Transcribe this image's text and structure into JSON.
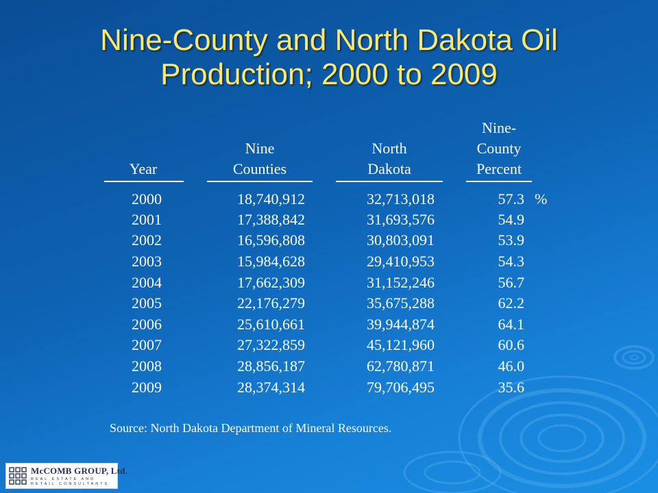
{
  "title": {
    "line1": "Nine-County and North Dakota Oil",
    "line2": "Production; 2000 to 2009"
  },
  "table": {
    "headers": {
      "year": [
        "",
        "",
        "Year"
      ],
      "nine_counties": [
        "",
        "Nine",
        "Counties"
      ],
      "north_dakota": [
        "",
        "North",
        "Dakota"
      ],
      "percent": [
        "Nine-",
        "County",
        "Percent"
      ]
    },
    "percent_unit": "%",
    "rows": [
      {
        "year": "2000",
        "nine_counties": "18,740,912",
        "north_dakota": "32,713,018",
        "percent": "57.3"
      },
      {
        "year": "2001",
        "nine_counties": "17,388,842",
        "north_dakota": "31,693,576",
        "percent": "54.9"
      },
      {
        "year": "2002",
        "nine_counties": "16,596,808",
        "north_dakota": "30,803,091",
        "percent": "53.9"
      },
      {
        "year": "2003",
        "nine_counties": "15,984,628",
        "north_dakota": "29,410,953",
        "percent": "54.3"
      },
      {
        "year": "2004",
        "nine_counties": "17,662,309",
        "north_dakota": "31,152,246",
        "percent": "56.7"
      },
      {
        "year": "2005",
        "nine_counties": "22,176,279",
        "north_dakota": "35,675,288",
        "percent": "62.2"
      },
      {
        "year": "2006",
        "nine_counties": "25,610,661",
        "north_dakota": "39,944,874",
        "percent": "64.1"
      },
      {
        "year": "2007",
        "nine_counties": "27,322,859",
        "north_dakota": "45,121,960",
        "percent": "60.6"
      },
      {
        "year": "2008",
        "nine_counties": "28,856,187",
        "north_dakota": "62,780,871",
        "percent": "46.0"
      },
      {
        "year": "2009",
        "nine_counties": "28,374,314",
        "north_dakota": "79,706,495",
        "percent": "35.6"
      }
    ]
  },
  "source": "Source:  North Dakota Department of Mineral Resources.",
  "logo": {
    "name": "McCOMB GROUP, Ltd.",
    "tagline_line1": "REAL ESTATE AND",
    "tagline_line2": "RETAIL CONSULTANTS"
  },
  "colors": {
    "title": "#ffe866",
    "text": "#ffffff",
    "background_dark": "#0a4d95",
    "background_light": "#1b8fe3"
  }
}
